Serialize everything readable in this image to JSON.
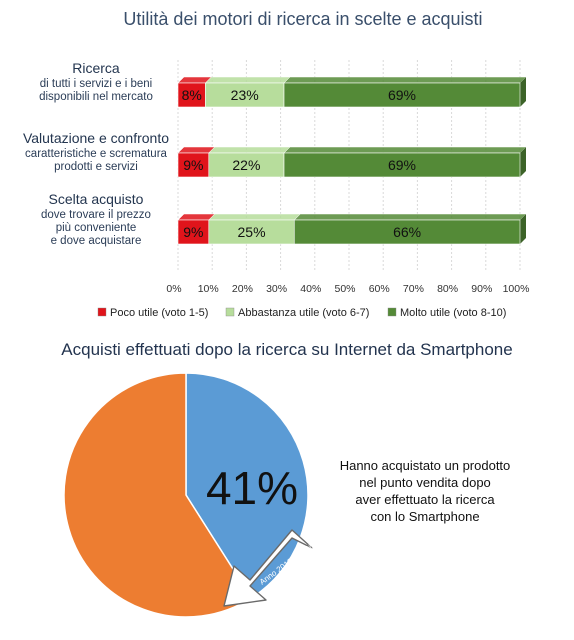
{
  "chart_data": [
    {
      "type": "bar",
      "stacked": true,
      "orientation": "horizontal",
      "title": "Utilità dei motori di ricerca in scelte e acquisti",
      "categories": [
        {
          "label": "Ricerca",
          "sublabel": [
            "di tutti i servizi e i beni",
            "disponibili nel mercato"
          ]
        },
        {
          "label": "Valutazione e confronto",
          "sublabel": [
            "caratteristiche e scrematura",
            "prodotti e servizi"
          ]
        },
        {
          "label": "Scelta acquisto",
          "sublabel": [
            "dove trovare il prezzo",
            "più conveniente",
            "e dove acquistare"
          ]
        }
      ],
      "series": [
        {
          "name": "Poco utile (voto 1-5)",
          "color": "#e0141b",
          "values": [
            8,
            9,
            9
          ],
          "labels": [
            "8%",
            "9%",
            "9%"
          ]
        },
        {
          "name": "Abbastanza utile (voto 6-7)",
          "color": "#b7dd9c",
          "values": [
            23,
            22,
            25
          ],
          "labels": [
            "23%",
            "22%",
            "25%"
          ]
        },
        {
          "name": "Molto utile (voto 8-10)",
          "color": "#548a37",
          "values": [
            69,
            69,
            66
          ],
          "labels": [
            "69%",
            "69%",
            "66%"
          ]
        }
      ],
      "xlim": [
        0,
        100
      ],
      "xticks": [
        "0%",
        "10%",
        "20%",
        "30%",
        "40%",
        "50%",
        "60%",
        "70%",
        "80%",
        "90%",
        "100%"
      ],
      "grid": true,
      "legend_position": "bottom"
    },
    {
      "type": "pie",
      "title": "Acquisti effettuati dopo la ricerca su Internet da Smartphone",
      "slices": [
        {
          "value": 41,
          "label": "41%",
          "color": "#5b9bd5"
        },
        {
          "value": 59,
          "label": "",
          "color": "#ed7d31"
        }
      ],
      "annotation_lines": [
        "Anno 2013: +23%",
        "Anno 2014: +30%",
        "Anno 2015: +41%"
      ],
      "note": [
        "Hanno acquistato un prodotto",
        "nel punto vendita dopo",
        "aver effettuato la ricerca",
        "con lo Smartphone"
      ]
    }
  ]
}
